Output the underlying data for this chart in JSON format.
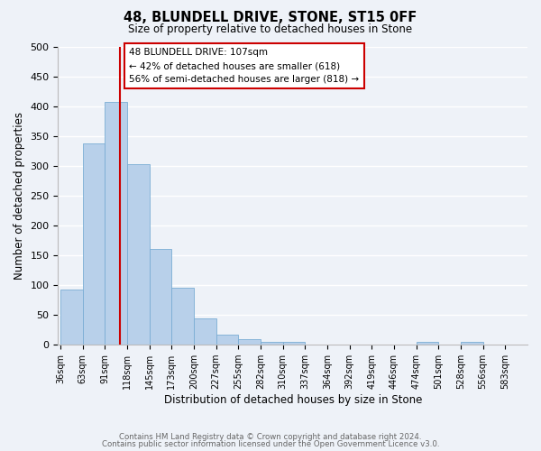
{
  "title": "48, BLUNDELL DRIVE, STONE, ST15 0FF",
  "subtitle": "Size of property relative to detached houses in Stone",
  "xlabel": "Distribution of detached houses by size in Stone",
  "ylabel": "Number of detached properties",
  "bin_labels": [
    "36sqm",
    "63sqm",
    "91sqm",
    "118sqm",
    "145sqm",
    "173sqm",
    "200sqm",
    "227sqm",
    "255sqm",
    "282sqm",
    "310sqm",
    "337sqm",
    "364sqm",
    "392sqm",
    "419sqm",
    "446sqm",
    "474sqm",
    "501sqm",
    "528sqm",
    "556sqm",
    "583sqm"
  ],
  "bar_heights": [
    93,
    337,
    407,
    303,
    161,
    95,
    44,
    17,
    10,
    5,
    5,
    0,
    0,
    0,
    0,
    0,
    5,
    0,
    5,
    0,
    0
  ],
  "bar_color": "#b8d0ea",
  "bar_edge_color": "#7aadd4",
  "ylim": [
    0,
    500
  ],
  "yticks": [
    0,
    50,
    100,
    150,
    200,
    250,
    300,
    350,
    400,
    450,
    500
  ],
  "property_line_bin": 2.7,
  "annotation_line1": "48 BLUNDELL DRIVE: 107sqm",
  "annotation_line2": "← 42% of detached houses are smaller (618)",
  "annotation_line3": "56% of semi-detached houses are larger (818) →",
  "annotation_box_color": "#ffffff",
  "annotation_border_color": "#cc0000",
  "property_line_color": "#cc0000",
  "background_color": "#eef2f8",
  "grid_color": "#ffffff",
  "footer_line1": "Contains HM Land Registry data © Crown copyright and database right 2024.",
  "footer_line2": "Contains public sector information licensed under the Open Government Licence v3.0."
}
